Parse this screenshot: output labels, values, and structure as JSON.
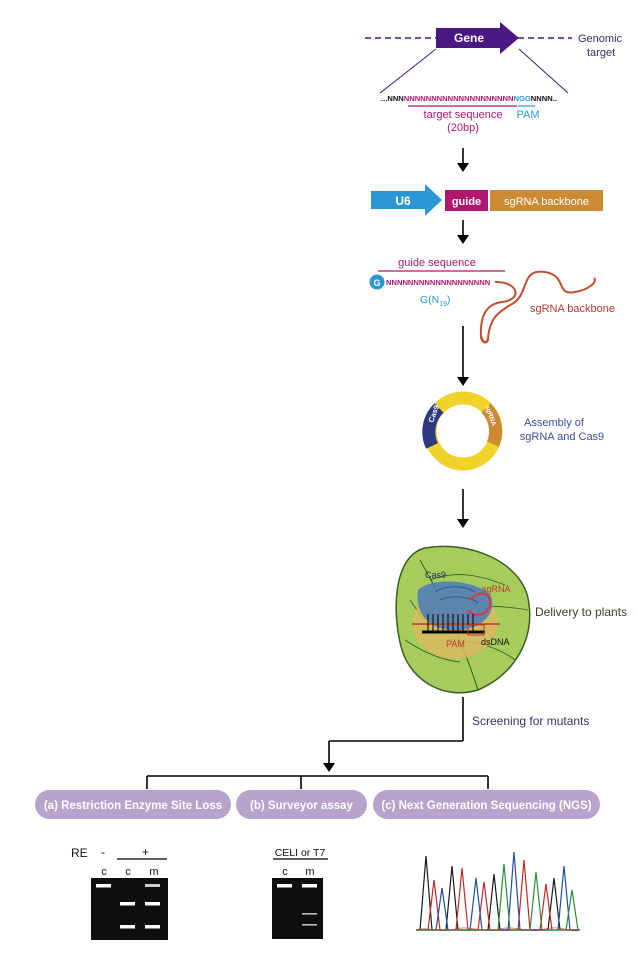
{
  "colors": {
    "purple": "#4b1780",
    "magenta": "#b0176e",
    "blue": "#2a97d4",
    "orange": "#cc8a35",
    "pill": "#b7a3cb",
    "leaf": "#a6cc5c",
    "ring_yellow": "#f0d22a",
    "ring_navy": "#2d3a82",
    "backbone_red": "#c0502b",
    "assembly_text": "#3f4fa0"
  },
  "gene_section": {
    "gene_label": "Gene",
    "genomic_target_line1": "Genomic",
    "genomic_target_line2": "target",
    "seq_left": "...NNN",
    "seq_target": "NNNNNNNNNNNNNNNNNNNN",
    "seq_pam": "NGG",
    "seq_right": "NNNN..",
    "target_label_line1": "target sequence",
    "target_label_line2": "(20bp)",
    "pam_label": "PAM"
  },
  "construct": {
    "u6_label": "U6",
    "guide_label": "guide",
    "backbone_label": "sgRNA backbone"
  },
  "sgrna": {
    "guide_sequence_label": "guide sequence",
    "g_circle": "G",
    "seq": "NNNNNNNNNNNNNNNNNNN",
    "g_n_label": "G(N",
    "g_n_sub": "19",
    "g_n_close": ")",
    "backbone_label": "sgRNA backbone"
  },
  "assembly": {
    "cas9_label": "Cas9",
    "sgrna_label": "sgRNA",
    "caption_line1": "Assembly of",
    "caption_line2": "sgRNA and Cas9"
  },
  "delivery": {
    "cas9_label": "Cas9",
    "sgrna_label": "sgRNA",
    "pam_label": "PAM",
    "dsdna_label": "dsDNA",
    "caption": "Delivery to plants"
  },
  "screening": {
    "caption": "Screening for mutants"
  },
  "methods": {
    "a_label": "(a) Restriction Enzyme Site Loss",
    "b_label": "(b) Surveyor assay",
    "c_label": "(c) Next Generation Sequencing (NGS)"
  },
  "gel_a": {
    "re_label": "RE",
    "minus_label": "-",
    "plus_label": "+",
    "lane1": "c",
    "lane2": "c",
    "lane3": "m"
  },
  "gel_b": {
    "enzyme_label": "CELI or T7",
    "lane1": "c",
    "lane2": "m"
  }
}
